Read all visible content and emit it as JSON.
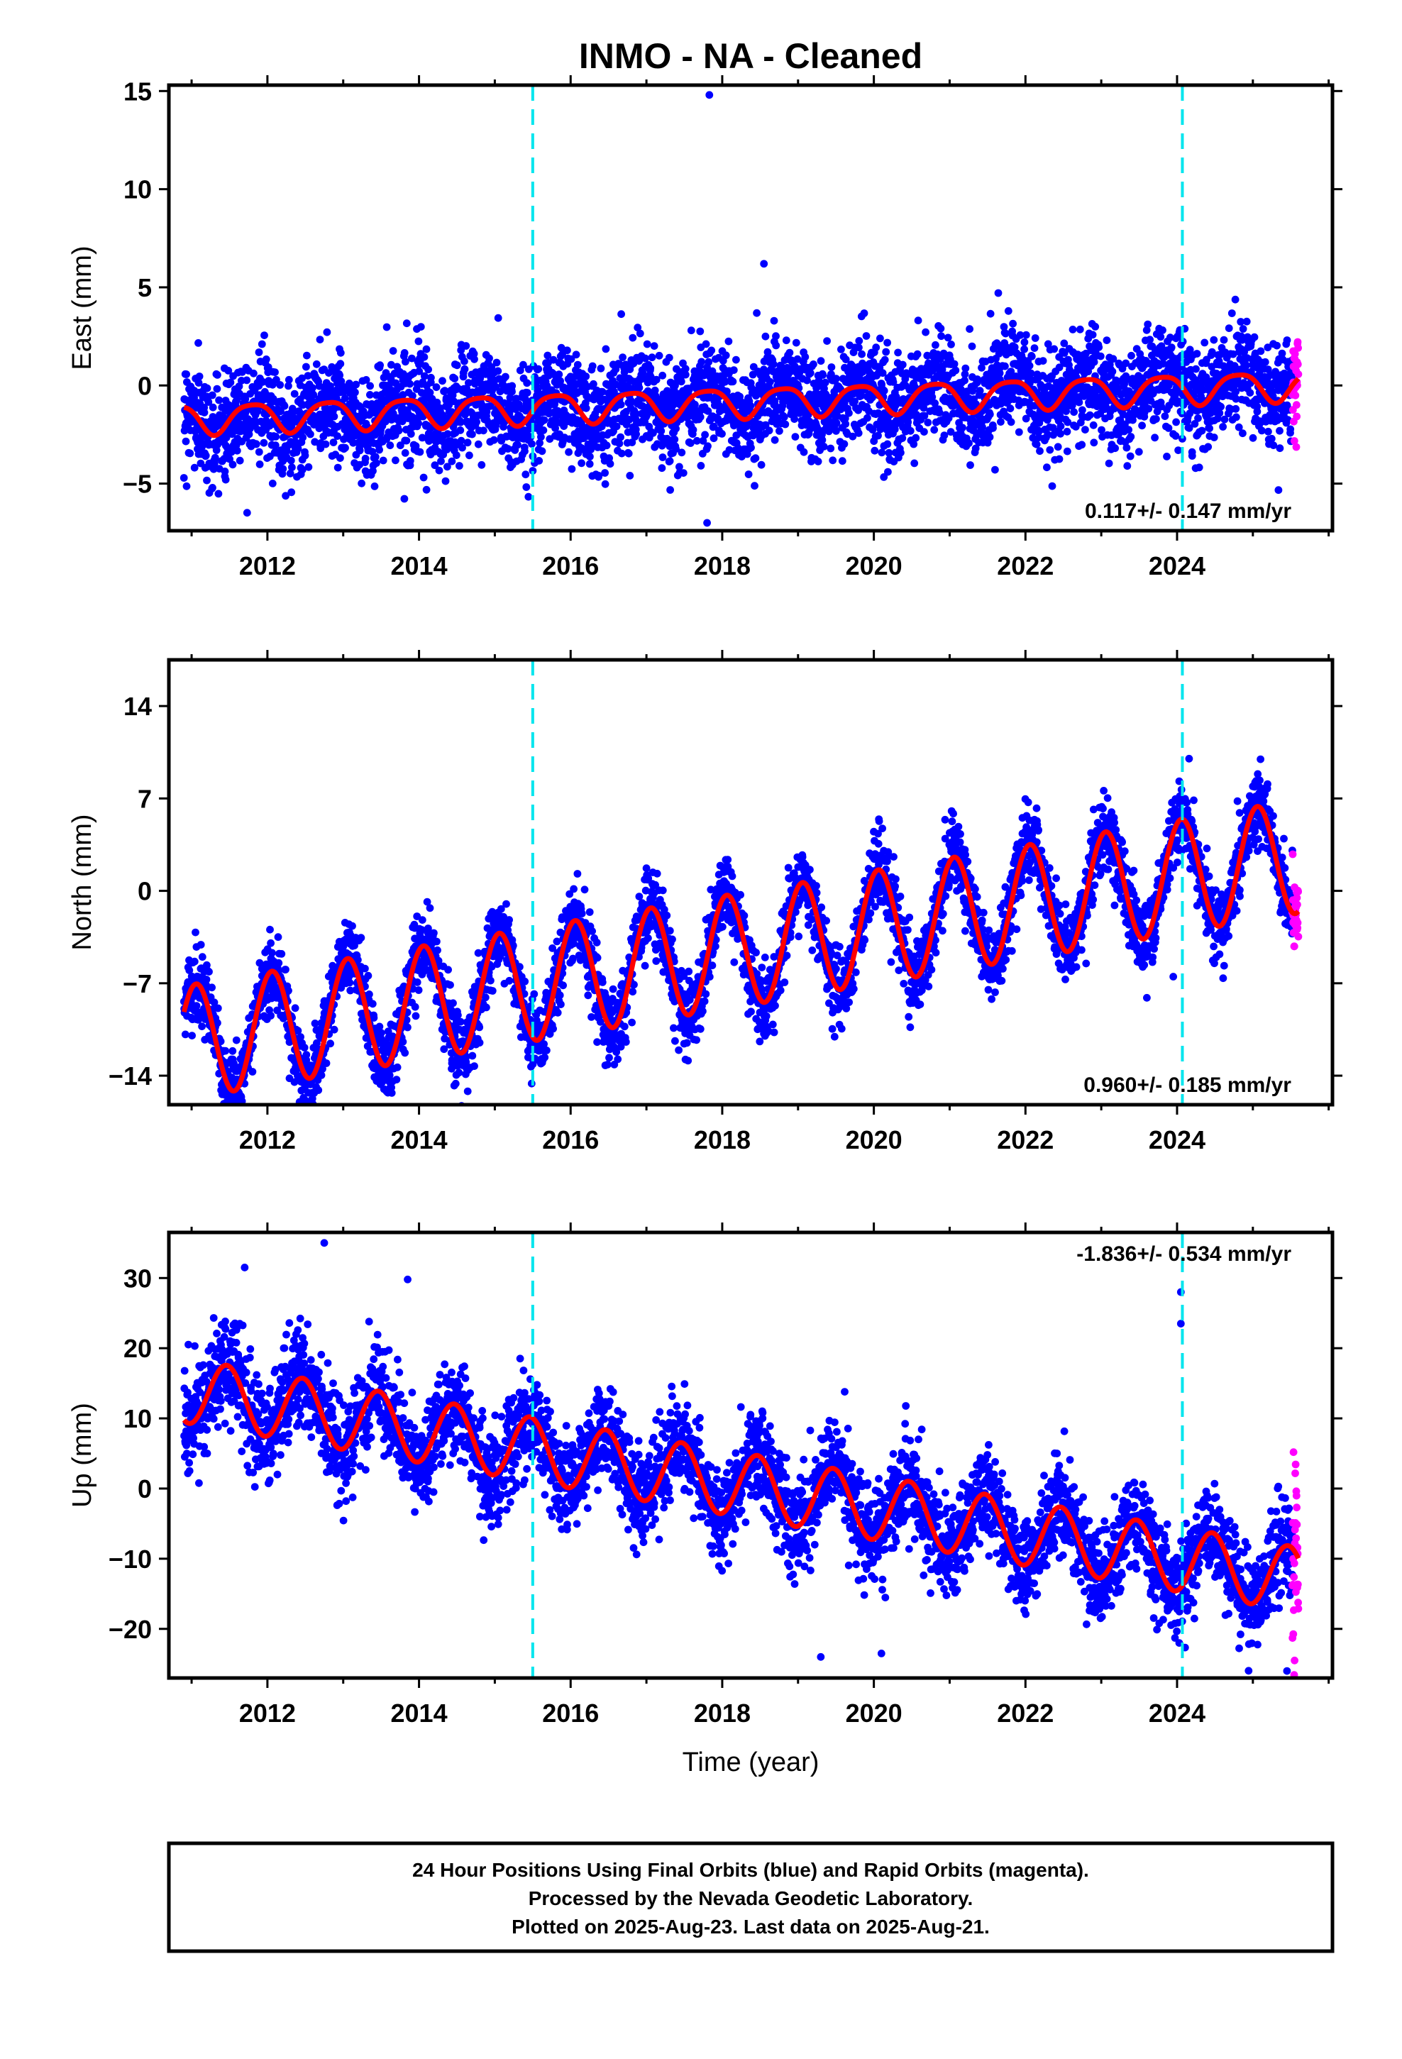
{
  "chart_data": {
    "title": "INMO  - NA - Cleaned",
    "type": "scatter",
    "xlabel": "Time (year)",
    "xlim": [
      2010.7,
      2026.05
    ],
    "x_ticks": [
      2012,
      2014,
      2016,
      2018,
      2020,
      2022,
      2024
    ],
    "grid": false,
    "event_lines": [
      2015.5,
      2024.07
    ],
    "event_line_color": "#00e5ee",
    "final_color": "#0000ff",
    "rapid_color": "#ff00ff",
    "model_color": "#ff0000",
    "rapid_start": 2025.52,
    "panels": [
      {
        "ylabel": "East (mm)",
        "ylim": [
          -7.4,
          15.3
        ],
        "y_ticks": [
          -5,
          0,
          5,
          10,
          15
        ],
        "rate": "0.117+/- 0.147 mm/yr",
        "rate_position": "bottom-right",
        "model": {
          "start": 2010.9,
          "end": 2025.6,
          "offset": -1.7,
          "trend": 0.117,
          "amp": 0.75,
          "phase": 2.8,
          "amp2": 0.15,
          "phase2": 1.0
        },
        "noise": 1.3,
        "outliers": [
          [
            2017.83,
            14.8
          ],
          [
            2018.55,
            6.2
          ],
          [
            2017.8,
            -7.0
          ],
          [
            2011.45,
            -4.8
          ]
        ]
      },
      {
        "ylabel": "North (mm)",
        "ylim": [
          -16.2,
          17.5
        ],
        "y_ticks": [
          -14,
          -7,
          0,
          7,
          14
        ],
        "rate": "0.960+/- 0.185 mm/yr",
        "rate_position": "bottom-right",
        "model": {
          "start": 2010.9,
          "end": 2025.6,
          "offset": -11.5,
          "trend": 0.96,
          "amp": 4.3,
          "phase": 1.2,
          "amp2": 0.0,
          "phase2": 0.0
        },
        "noise": 1.4,
        "outliers": [
          [
            2012.55,
            -14.5
          ],
          [
            2014.8,
            -11.5
          ],
          [
            2022.8,
            -5.5
          ],
          [
            2023.95,
            -6.5
          ]
        ]
      },
      {
        "ylabel": "Up (mm)",
        "ylim": [
          -27,
          36.5
        ],
        "y_ticks": [
          -20,
          -10,
          0,
          10,
          20,
          30
        ],
        "rate": "-1.836+/- 0.534 mm/yr",
        "rate_position": "top-right",
        "model": {
          "start": 2010.9,
          "end": 2025.6,
          "offset": 14.0,
          "trend": -1.836,
          "amp": 4.6,
          "phase": -1.35,
          "amp2": 0.0,
          "phase2": 0.0
        },
        "noise": 3.4,
        "outliers": [
          [
            2012.75,
            35
          ],
          [
            2011.7,
            31.5
          ],
          [
            2013.85,
            29.8
          ],
          [
            2024.05,
            28
          ],
          [
            2024.05,
            23.5
          ],
          [
            2019.3,
            -24
          ],
          [
            2025.45,
            -26
          ],
          [
            2020.1,
            -23.5
          ]
        ]
      }
    ]
  },
  "footer": {
    "line1": "24 Hour Positions Using Final Orbits (blue) and Rapid Orbits (magenta).",
    "line2": "Processed by the Nevada Geodetic Laboratory.",
    "line3": "Plotted on 2025-Aug-23. Last data on 2025-Aug-21."
  }
}
